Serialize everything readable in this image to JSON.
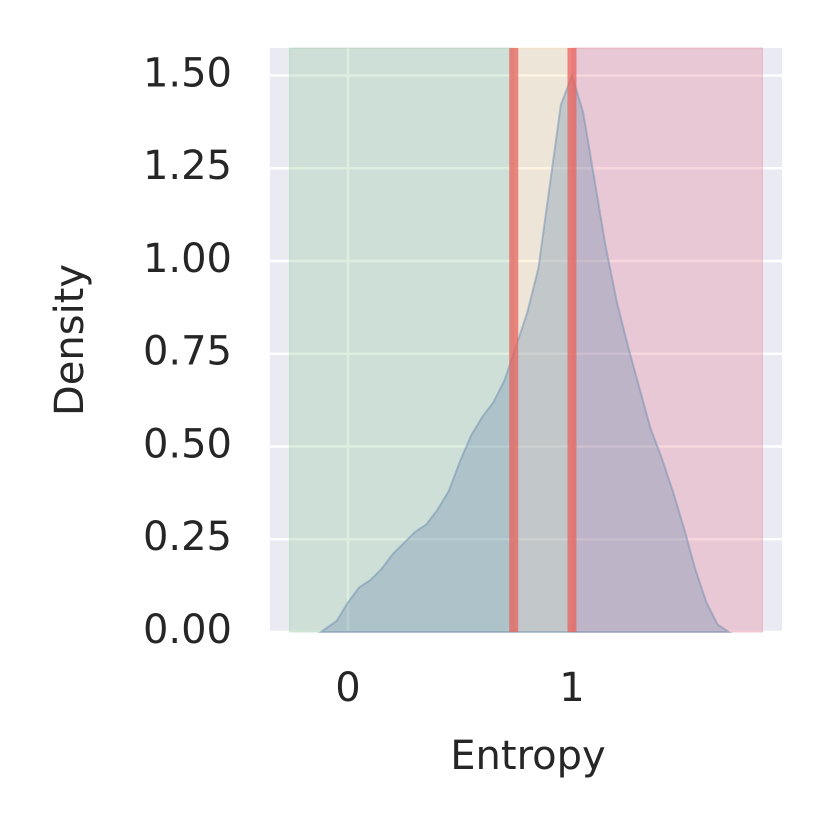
{
  "chart_data": {
    "type": "area",
    "x_label": "Entropy",
    "y_label": "Density",
    "x": [
      -0.12,
      -0.05,
      0.0,
      0.05,
      0.1,
      0.15,
      0.2,
      0.25,
      0.3,
      0.35,
      0.4,
      0.45,
      0.5,
      0.55,
      0.6,
      0.65,
      0.7,
      0.75,
      0.8,
      0.85,
      0.9,
      0.95,
      1.0,
      1.05,
      1.1,
      1.15,
      1.2,
      1.25,
      1.3,
      1.35,
      1.4,
      1.45,
      1.5,
      1.55,
      1.6,
      1.65,
      1.7
    ],
    "values": [
      0,
      0.03,
      0.08,
      0.12,
      0.14,
      0.17,
      0.21,
      0.24,
      0.27,
      0.29,
      0.33,
      0.38,
      0.46,
      0.53,
      0.58,
      0.62,
      0.68,
      0.77,
      0.86,
      0.98,
      1.2,
      1.42,
      1.5,
      1.4,
      1.22,
      1.04,
      0.89,
      0.77,
      0.66,
      0.55,
      0.47,
      0.38,
      0.28,
      0.17,
      0.08,
      0.02,
      0
    ],
    "color": "#6f8fb0",
    "spans": [
      {
        "start": -0.26,
        "end": 0.74,
        "color": "#8fc79a"
      },
      {
        "start": 0.74,
        "end": 1.0,
        "color": "#f7d9a0"
      },
      {
        "start": 1.0,
        "end": 1.85,
        "color": "#e67a90"
      }
    ],
    "vlines": [
      0.74,
      1.0
    ],
    "vline_color": "#e8625c",
    "xlim": [
      -0.348,
      1.9375
    ],
    "ylim": [
      0,
      1.574
    ],
    "xticks": [
      0,
      1
    ],
    "yticks": [
      {
        "value": 0,
        "label": "0.00"
      },
      {
        "value": 0.25,
        "label": "0.25"
      },
      {
        "value": 0.5,
        "label": "0.50"
      },
      {
        "value": 0.75,
        "label": "0.75"
      },
      {
        "value": 1.0,
        "label": "1.00"
      },
      {
        "value": 1.25,
        "label": "1.25"
      },
      {
        "value": 1.5,
        "label": "1.50"
      }
    ],
    "grid": true
  }
}
